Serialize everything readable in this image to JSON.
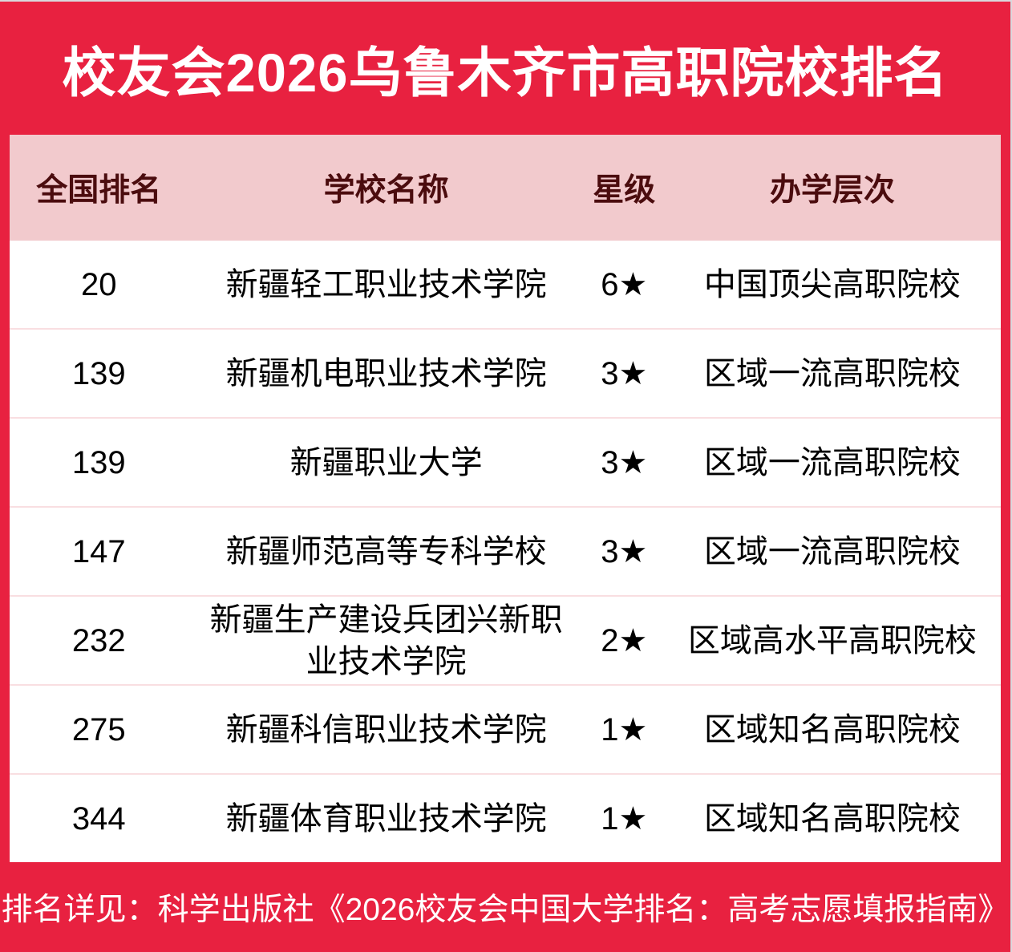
{
  "title": "校友会2026乌鲁木齐市高职院校排名",
  "table": {
    "headers": [
      "全国排名",
      "学校名称",
      "星级",
      "办学层次"
    ],
    "rows": [
      {
        "rank": "20",
        "school": "新疆轻工职业技术学院",
        "star": "6★",
        "level": "中国顶尖高职院校"
      },
      {
        "rank": "139",
        "school": "新疆机电职业技术学院",
        "star": "3★",
        "level": "区域一流高职院校"
      },
      {
        "rank": "139",
        "school": "新疆职业大学",
        "star": "3★",
        "level": "区域一流高职院校"
      },
      {
        "rank": "147",
        "school": "新疆师范高等专科学校",
        "star": "3★",
        "level": "区域一流高职院校"
      },
      {
        "rank": "232",
        "school": "新疆生产建设兵团兴新职业技术学院",
        "star": "2★",
        "level": "区域高水平高职院校"
      },
      {
        "rank": "275",
        "school": "新疆科信职业技术学院",
        "star": "1★",
        "level": "区域知名高职院校"
      },
      {
        "rank": "344",
        "school": "新疆体育职业技术学院",
        "star": "1★",
        "level": "区域知名高职院校"
      }
    ]
  },
  "footer_note": "排名详见：科学出版社《2026校友会中国大学排名：高考志愿填报指南》",
  "colors": {
    "brand_red": "#e82140",
    "header_pink": "#f2cacd",
    "header_text": "#4b0c0e",
    "row_text": "#000000",
    "row_separator": "#f9dee1",
    "title_text": "#ffffff"
  }
}
